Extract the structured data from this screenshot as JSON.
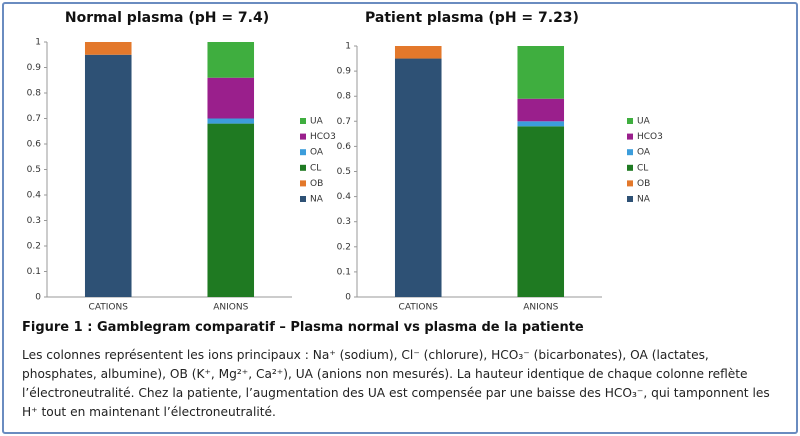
{
  "chart_data": [
    {
      "type": "bar",
      "stacked": true,
      "title": "Normal plasma (pH = 7.4)",
      "categories": [
        "CATIONS",
        "ANIONS"
      ],
      "series": [
        {
          "name": "NA",
          "color": "#2e5175",
          "values": [
            0.95,
            null
          ]
        },
        {
          "name": "OB",
          "color": "#e3782b",
          "values": [
            0.05,
            null
          ]
        },
        {
          "name": "CL",
          "color": "#1f7a22",
          "values": [
            null,
            0.68
          ]
        },
        {
          "name": "OA",
          "color": "#3c9ddb",
          "values": [
            null,
            0.02
          ]
        },
        {
          "name": "HCO3",
          "color": "#9a1f8c",
          "values": [
            null,
            0.16
          ]
        },
        {
          "name": "UA",
          "color": "#3fae3f",
          "values": [
            null,
            0.14
          ]
        }
      ],
      "ylim": [
        0,
        1
      ],
      "yticks": [
        0,
        0.1,
        0.2,
        0.3,
        0.4,
        0.5,
        0.6,
        0.7,
        0.8,
        0.9,
        1
      ],
      "legend": "right"
    },
    {
      "type": "bar",
      "stacked": true,
      "title": "Patient plasma (pH = 7.23)",
      "categories": [
        "CATIONS",
        "ANIONS"
      ],
      "series": [
        {
          "name": "NA",
          "color": "#2e5175",
          "values": [
            0.95,
            null
          ]
        },
        {
          "name": "OB",
          "color": "#e3782b",
          "values": [
            0.05,
            null
          ]
        },
        {
          "name": "CL",
          "color": "#1f7a22",
          "values": [
            null,
            0.68
          ]
        },
        {
          "name": "OA",
          "color": "#3c9ddb",
          "values": [
            null,
            0.02
          ]
        },
        {
          "name": "HCO3",
          "color": "#9a1f8c",
          "values": [
            null,
            0.09
          ]
        },
        {
          "name": "UA",
          "color": "#3fae3f",
          "values": [
            null,
            0.21
          ]
        }
      ],
      "ylim": [
        0,
        1
      ],
      "yticks": [
        0,
        0.1,
        0.2,
        0.3,
        0.4,
        0.5,
        0.6,
        0.7,
        0.8,
        0.9,
        1
      ],
      "legend": "right"
    }
  ],
  "caption": {
    "title": "Figure 1 : Gamblegram comparatif – Plasma normal vs plasma de la patiente",
    "text": "Les colonnes représentent les ions principaux : Na⁺ (sodium), Cl⁻ (chlorure), HCO₃⁻ (bicarbonates), OA (lactates, phosphates, albumine), OB (K⁺, Mg²⁺, Ca²⁺), UA (anions non mesurés). La hauteur identique de chaque colonne reflète l’électroneutralité. Chez la patiente, l’augmentation des UA est compensée par une baisse des HCO₃⁻, qui tamponnent les H⁺ tout en maintenant l’électroneutralité."
  }
}
